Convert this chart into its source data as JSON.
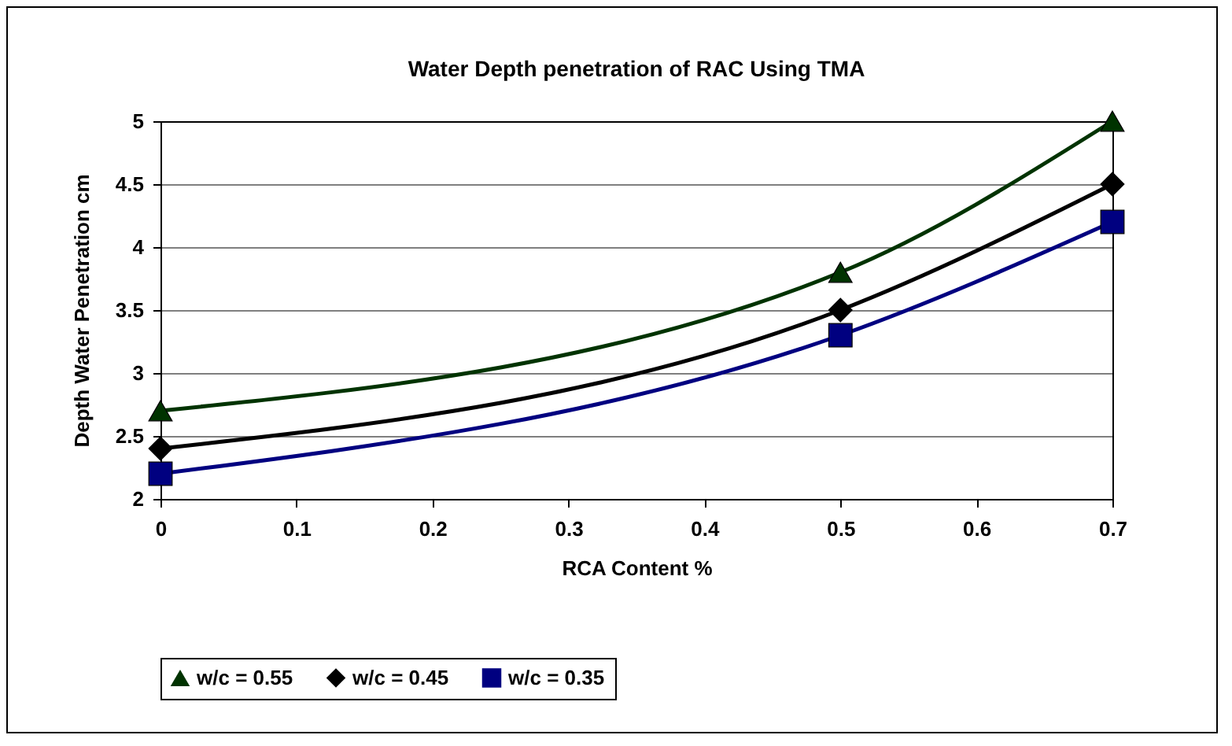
{
  "chart_data": {
    "type": "line",
    "title": "Water Depth penetration of RAC Using TMA",
    "xlabel": "RCA Content %",
    "ylabel": "Depth Water Penetration cm",
    "x": [
      0,
      0.5,
      0.7
    ],
    "series": [
      {
        "name": "w/c = 0.55",
        "color": "#003300",
        "marker": "triangle",
        "values": [
          2.7,
          3.8,
          5.0
        ]
      },
      {
        "name": "w/c = 0.45",
        "color": "#000000",
        "marker": "diamond",
        "values": [
          2.4,
          3.5,
          4.5
        ]
      },
      {
        "name": "w/c = 0.35",
        "color": "#000080",
        "marker": "square",
        "values": [
          2.2,
          3.3,
          4.2
        ]
      }
    ],
    "xlim": [
      0,
      0.7
    ],
    "xticks": [
      0,
      0.1,
      0.2,
      0.3,
      0.4,
      0.5,
      0.6,
      0.7
    ],
    "ylim": [
      2,
      5
    ],
    "yticks": [
      2,
      2.5,
      3,
      3.5,
      4,
      4.5,
      5
    ],
    "grid": "y",
    "legend": "bottom",
    "line_style": "solid"
  }
}
